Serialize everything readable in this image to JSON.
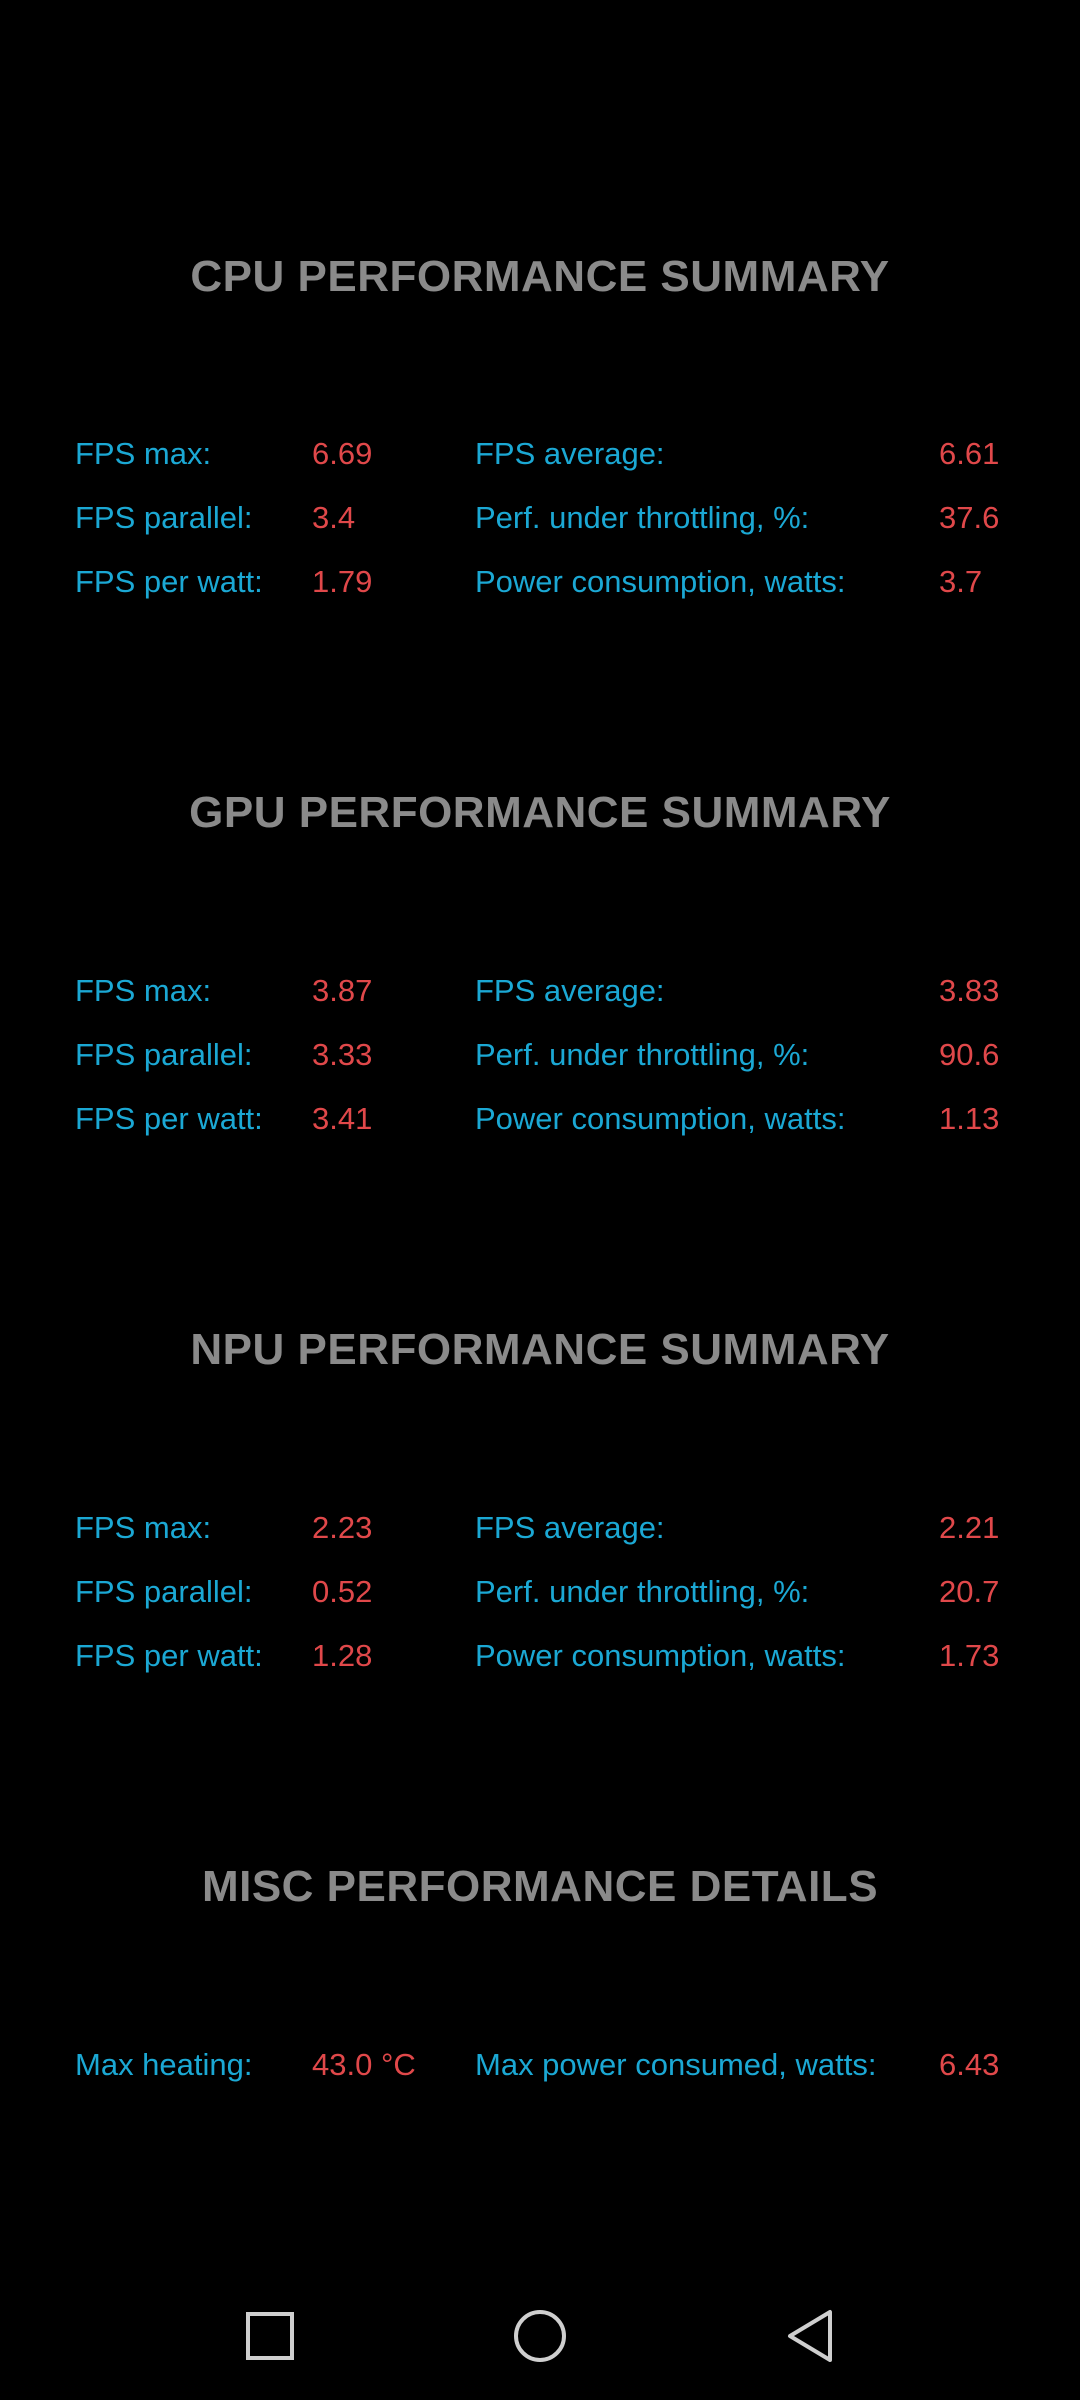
{
  "sections": [
    {
      "title": "CPU PERFORMANCE SUMMARY",
      "rows": [
        {
          "l1": "FPS max:",
          "v1": "6.69",
          "l2": "FPS average:",
          "v2": "6.61"
        },
        {
          "l1": "FPS parallel:",
          "v1": "3.4",
          "l2": "Perf. under throttling, %:",
          "v2": "37.6"
        },
        {
          "l1": "FPS per watt:",
          "v1": "1.79",
          "l2": "Power consumption, watts:",
          "v2": "3.7"
        }
      ]
    },
    {
      "title": "GPU PERFORMANCE SUMMARY",
      "rows": [
        {
          "l1": "FPS max:",
          "v1": "3.87",
          "l2": "FPS average:",
          "v2": "3.83"
        },
        {
          "l1": "FPS parallel:",
          "v1": "3.33",
          "l2": "Perf. under throttling, %:",
          "v2": "90.6"
        },
        {
          "l1": "FPS per watt:",
          "v1": "3.41",
          "l2": "Power consumption, watts:",
          "v2": "1.13"
        }
      ]
    },
    {
      "title": "NPU PERFORMANCE SUMMARY",
      "rows": [
        {
          "l1": "FPS max:",
          "v1": "2.23",
          "l2": "FPS average:",
          "v2": "2.21"
        },
        {
          "l1": "FPS parallel:",
          "v1": "0.52",
          "l2": "Perf. under throttling, %:",
          "v2": "20.7"
        },
        {
          "l1": "FPS per watt:",
          "v1": "1.28",
          "l2": "Power consumption, watts:",
          "v2": "1.73"
        }
      ]
    },
    {
      "title": "MISC PERFORMANCE DETAILS",
      "rows": [
        {
          "l1": "Max heating:",
          "v1": "43.0 °C",
          "l2": "Max power consumed, watts:",
          "v2": "6.43"
        }
      ]
    }
  ],
  "colors": {
    "background": "#000000",
    "title": "#8a8a8a",
    "label": "#1ba8d4",
    "value": "#e0484a",
    "navbar_icon": "#cfcfcf"
  },
  "navbar": {
    "icons": [
      "recent-apps-icon",
      "home-icon",
      "back-icon"
    ]
  }
}
